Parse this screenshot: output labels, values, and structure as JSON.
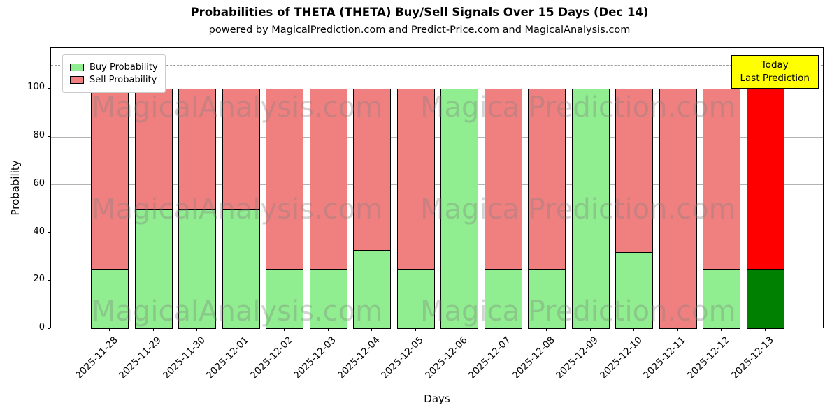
{
  "title": "Probabilities of THETA (THETA) Buy/Sell Signals Over 15 Days (Dec 14)",
  "subtitle": "powered by MagicalPrediction.com and Predict-Price.com and MagicalAnalysis.com",
  "xlabel": "Days",
  "ylabel": "Probability",
  "legend": {
    "buy": "Buy Probability",
    "sell": "Sell Probability"
  },
  "annotation": {
    "line1": "Today",
    "line2": "Last Prediction",
    "bg": "#FFFF00"
  },
  "watermarks": [
    "MagicalAnalysis.com",
    "Magica Prediction.com"
  ],
  "chart_data": {
    "type": "bar",
    "stacked": true,
    "title": "Probabilities of THETA (THETA) Buy/Sell Signals Over 15 Days (Dec 14)",
    "xlabel": "Days",
    "ylabel": "Probability",
    "grid": true,
    "legend_position": "upper left",
    "categories": [
      "2025-11-28",
      "2025-11-29",
      "2025-11-30",
      "2025-12-01",
      "2025-12-02",
      "2025-12-03",
      "2025-12-04",
      "2025-12-05",
      "2025-12-06",
      "2025-12-07",
      "2025-12-08",
      "2025-12-09",
      "2025-12-10",
      "2025-12-11",
      "2025-12-12",
      "2025-12-13"
    ],
    "series": [
      {
        "name": "Buy Probability",
        "color": "#90EE90",
        "values": [
          25,
          50,
          50,
          50,
          25,
          25,
          33,
          25,
          100,
          25,
          25,
          100,
          32,
          0,
          25,
          25
        ]
      },
      {
        "name": "Sell Probability",
        "color": "#F08080",
        "values": [
          75,
          50,
          50,
          50,
          75,
          75,
          67,
          75,
          0,
          75,
          75,
          0,
          68,
          100,
          75,
          75
        ]
      }
    ],
    "today": {
      "index": 15,
      "buy_color": "#008000",
      "sell_color": "#FF0000"
    },
    "yticks": [
      0,
      20,
      40,
      60,
      80,
      100
    ],
    "ylim": [
      0,
      117
    ],
    "dashed_line_y": 110
  }
}
